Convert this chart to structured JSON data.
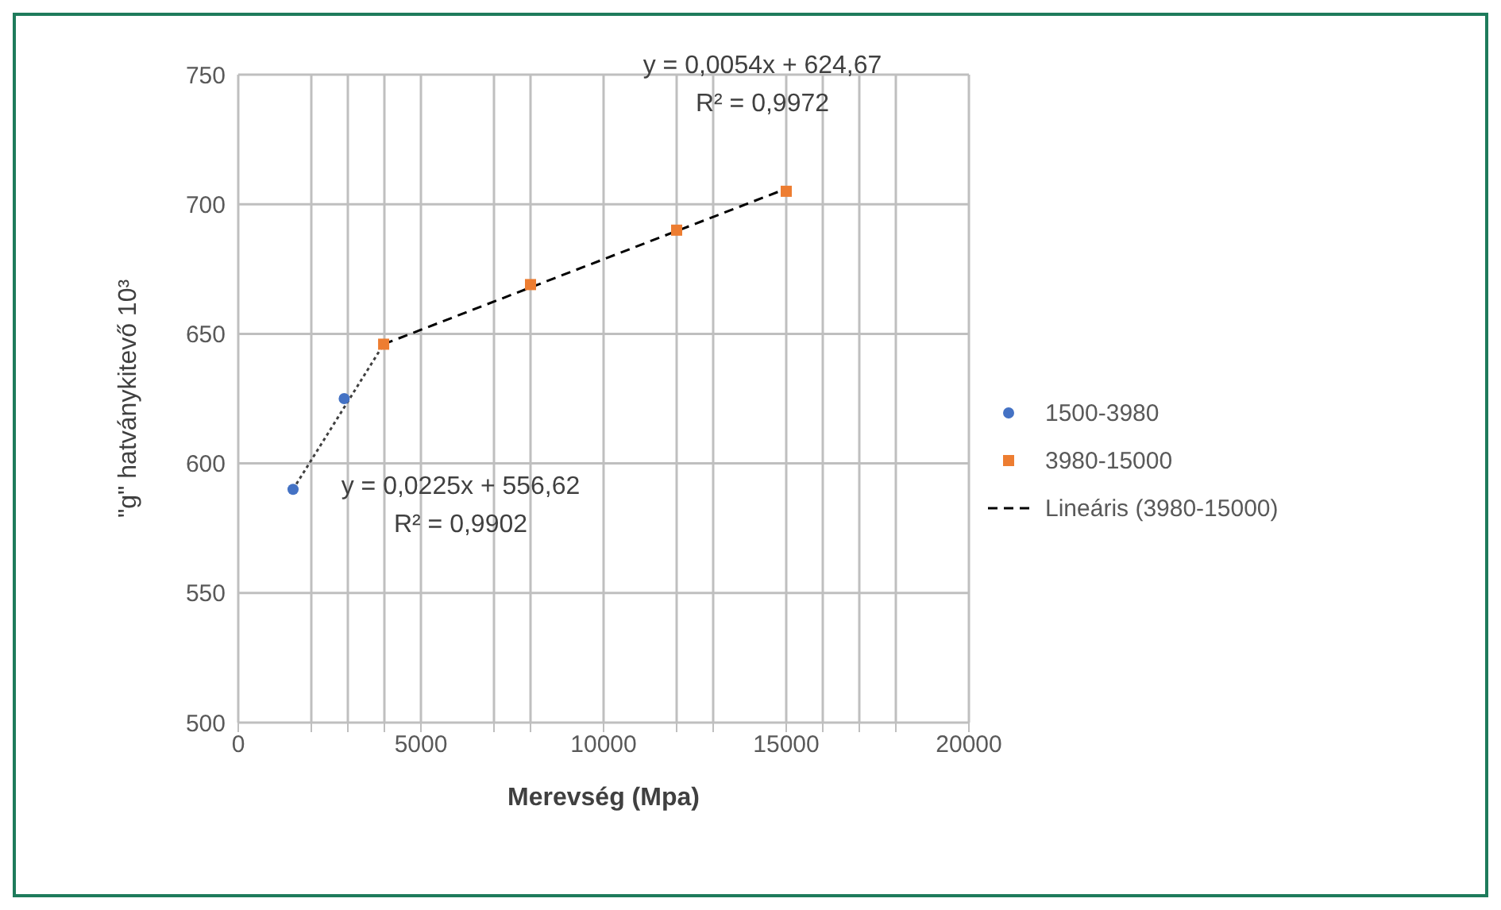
{
  "chart_data": {
    "type": "scatter",
    "xlabel": "Merevség (Mpa)",
    "ylabel": "\"g\" hatványkitevő 10³",
    "xlim": [
      0,
      20000
    ],
    "ylim": [
      500,
      750
    ],
    "xticks": [
      0,
      {
        "value": 2000,
        "label": null
      },
      {
        "value": 3000,
        "label": null
      },
      {
        "value": 4000,
        "label": null
      },
      5000,
      {
        "value": 7000,
        "label": null
      },
      {
        "value": 8000,
        "label": null
      },
      10000,
      {
        "value": 12000,
        "label": null
      },
      {
        "value": 13000,
        "label": null
      },
      15000,
      {
        "value": 16000,
        "label": null
      },
      {
        "value": 17000,
        "label": null
      },
      {
        "value": 18000,
        "label": null
      },
      20000
    ],
    "yticks": [
      500,
      550,
      600,
      650,
      700,
      750
    ],
    "grid": true,
    "legend": "right",
    "series": [
      {
        "name": "1500-3980",
        "marker": "circle",
        "color": "#4472c4",
        "x": [
          1500,
          2900
        ],
        "values": [
          590,
          625
        ]
      },
      {
        "name": "3980-15000",
        "marker": "square",
        "color": "#ed7d31",
        "x": [
          3980,
          8000,
          12000,
          15000
        ],
        "values": [
          646,
          669,
          690,
          705
        ]
      },
      {
        "type": "line",
        "line_style": "dotted",
        "marker": "none",
        "color": "#404040",
        "x": [
          1500,
          3980
        ],
        "values": [
          590,
          646
        ]
      },
      {
        "name": "Lineáris (3980-15000)",
        "type": "line",
        "line_style": "dashed",
        "marker": "none",
        "color": "#000000",
        "x": [
          3980,
          15000
        ],
        "values": [
          646,
          706
        ]
      }
    ],
    "annotations": [
      "y = 0,0054x + 624,67\nR² = 0,9972",
      "y = 0,0225x + 556,62\nR² = 0,9902"
    ]
  }
}
